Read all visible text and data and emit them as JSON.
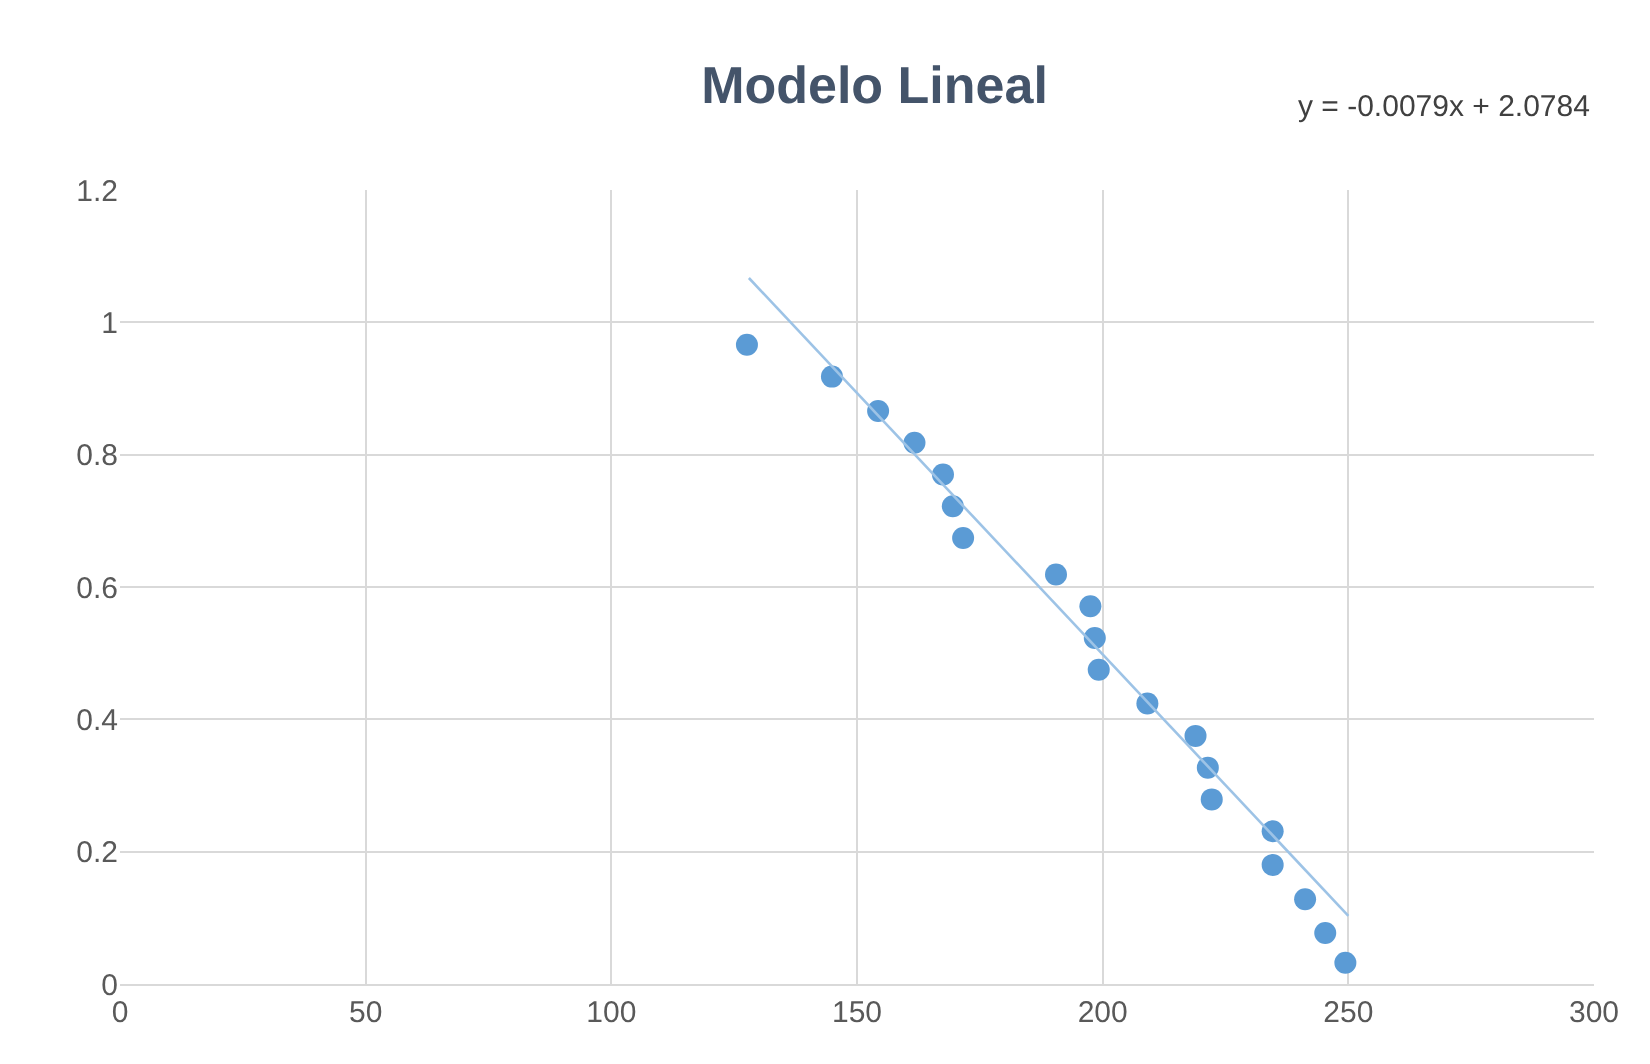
{
  "chart_data": {
    "type": "scatter",
    "title": "Modelo Lineal",
    "annotations": [
      "y = -0.0079x + 2.0784"
    ],
    "xlim": [
      0,
      300
    ],
    "xticks": [
      0,
      50,
      100,
      150,
      200,
      250,
      300
    ],
    "ylim": [
      0,
      1.2
    ],
    "yticks": [
      0,
      0.2,
      0.4,
      0.6,
      0.8,
      1,
      1.2
    ],
    "grid": true,
    "series": [
      {
        "marker": "circle",
        "color": "#5b9bd5",
        "x": [
          127.6,
          144.9,
          154.3,
          161.7,
          167.5,
          169.5,
          171.6,
          190.5,
          197.5,
          198.4,
          199.2,
          209.1,
          218.9,
          221.4,
          222.2,
          234.6,
          234.6,
          241.2,
          245.3,
          249.4
        ],
        "values": [
          0.966,
          0.918,
          0.866,
          0.818,
          0.77,
          0.722,
          0.674,
          0.619,
          0.571,
          0.523,
          0.475,
          0.424,
          0.375,
          0.327,
          0.279,
          0.231,
          0.18,
          0.128,
          0.077,
          0.032
        ]
      },
      {
        "type": "line",
        "marker": "none",
        "color": "#9dc3e6",
        "x": [
          128,
          250
        ],
        "values": [
          1.067,
          0.103
        ]
      }
    ]
  }
}
